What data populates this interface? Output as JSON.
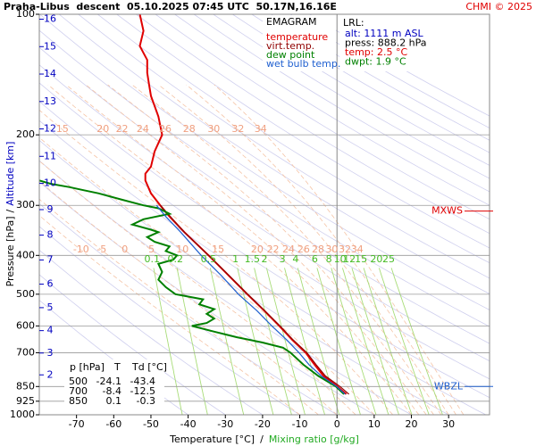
{
  "chart_data": {
    "type": "emagram",
    "title": "Praha-Libus  descent  05.10.2025 07:45 UTC  50.17N,16.16E",
    "credit": "CHMI © 2025",
    "xlabel": "Temperature [°C]",
    "label_sep": "/",
    "xlabel2": "Mixing ratio [g/kg]",
    "ylabel": "Pressure [hPa]",
    "ylabel2": "Altitude [km]",
    "xlim": [
      -80,
      41
    ],
    "xticks": [
      -70,
      -60,
      -50,
      -40,
      -30,
      -20,
      -10,
      0,
      10,
      20,
      30
    ],
    "ylim": [
      1000,
      100
    ],
    "log_y": true,
    "yticks": [
      100,
      200,
      300,
      400,
      500,
      600,
      700,
      850,
      925,
      1000
    ],
    "altitude_km": [
      2,
      3,
      4,
      5,
      6,
      7,
      8,
      9,
      10,
      11,
      12,
      13,
      14,
      15,
      16
    ],
    "moist_adiabats": [
      -10,
      -5,
      0,
      5,
      10,
      15,
      20,
      22,
      24,
      26,
      28,
      30,
      32,
      34
    ],
    "moist_label_pressures": [
      387,
      194
    ],
    "mixing_ratios": [
      0.1,
      0.2,
      0.5,
      1,
      1.5,
      2,
      3,
      4,
      6,
      8,
      10,
      12,
      15,
      20,
      25
    ],
    "mixing_label_pressure": 410,
    "legend": {
      "title": "EMAGRAM"
    },
    "series": [
      {
        "name": "temperature",
        "color": "#e00000",
        "y": [
          888.2,
          850,
          800,
          750,
          700,
          650,
          600,
          550,
          500,
          450,
          400,
          350,
          320,
          300,
          280,
          260,
          250,
          240,
          220,
          200,
          180,
          160,
          150,
          140,
          130,
          120,
          110,
          100
        ],
        "x": [
          2.5,
          0.1,
          -3.6,
          -6,
          -8.4,
          -12,
          -15.5,
          -19.5,
          -24.1,
          -29,
          -34.5,
          -41,
          -45,
          -47.5,
          -50,
          -51.5,
          -51.5,
          -50,
          -49,
          -47,
          -48,
          -50,
          -50.5,
          -51,
          -51,
          -53,
          -52,
          -53
        ]
      },
      {
        "name": "virt.temp.",
        "color": "#900000",
        "y": [
          888.2,
          850,
          800,
          750,
          700,
          650,
          600,
          550,
          500,
          450,
          400,
          350,
          300
        ],
        "x": [
          3.2,
          0.8,
          -3.1,
          -5.6,
          -8.1,
          -11.8,
          -15.3,
          -19.4,
          -24,
          -28.9,
          -34.5,
          -41,
          -47.5
        ]
      },
      {
        "name": "dew point",
        "color": "#008000",
        "y": [
          888.2,
          850,
          800,
          750,
          700,
          680,
          660,
          640,
          620,
          600,
          590,
          575,
          560,
          545,
          530,
          515,
          500,
          480,
          460,
          440,
          420,
          410,
          400,
          390,
          380,
          370,
          360,
          350,
          345,
          335,
          325,
          315,
          305,
          300,
          290,
          280,
          275,
          270,
          265,
          260
        ],
        "x": [
          1.9,
          -0.3,
          -5,
          -9,
          -12.5,
          -14.5,
          -20,
          -27,
          -33,
          -39,
          -35,
          -33,
          -35,
          -33,
          -37,
          -36,
          -43.4,
          -46,
          -48,
          -47,
          -48,
          -44,
          -43,
          -46,
          -45,
          -49,
          -51,
          -48,
          -50,
          -55,
          -52,
          -45,
          -48,
          -52,
          -58,
          -64,
          -68,
          -72,
          -77,
          -80
        ]
      },
      {
        "name": "wet bulb temp.",
        "color": "#2060d0",
        "y": [
          888.2,
          850,
          800,
          750,
          700,
          650,
          600,
          550,
          500,
          450,
          400,
          350,
          320,
          300
        ],
        "x": [
          2.2,
          -0.1,
          -4.2,
          -7.5,
          -10.2,
          -13.5,
          -17.5,
          -21.5,
          -26.5,
          -31,
          -36.5,
          -42,
          -46,
          -48.5
        ]
      }
    ],
    "annotations": [
      {
        "text": "MXWS",
        "pressure": 310,
        "color": "#e00000"
      },
      {
        "text": "WBZL",
        "pressure": 850,
        "color": "#2060d0"
      }
    ],
    "station": {
      "title": "LRL:",
      "lines": [
        {
          "text": "alt: 1111 m ASL",
          "color": "#0000c0"
        },
        {
          "text": "press: 888.2 hPa",
          "color": "#000000"
        },
        {
          "text": "temp: 2.5 °C",
          "color": "#e00000"
        },
        {
          "text": "dwpt: 1.9 °C",
          "color": "#008000"
        }
      ]
    },
    "table": {
      "header": [
        "p [hPa]",
        "T",
        "Td [°C]"
      ],
      "rows": [
        [
          500,
          -24.1,
          -43.4
        ],
        [
          700,
          -8.4,
          -12.5
        ],
        [
          850,
          0.1,
          -0.3
        ]
      ]
    }
  }
}
